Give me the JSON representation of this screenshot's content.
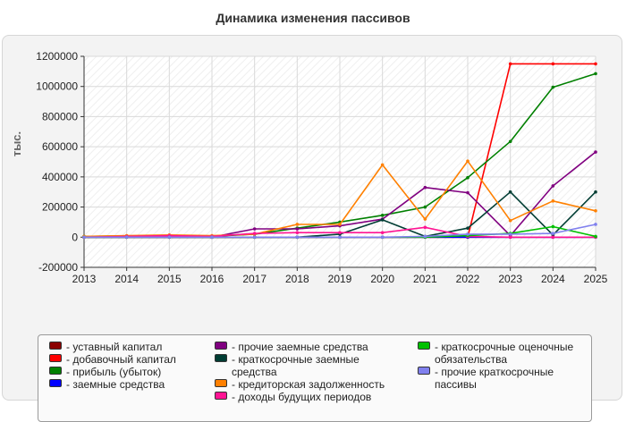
{
  "title": "Динамика изменения пассивов",
  "chart_data": {
    "type": "line",
    "title": "Динамика изменения пассивов",
    "xlabel": "",
    "ylabel": "тыс.",
    "x": [
      "2013",
      "2014",
      "2015",
      "2016",
      "2017",
      "2018",
      "2019",
      "2020",
      "2021",
      "2022",
      "2023",
      "2024",
      "2025"
    ],
    "ylim": [
      -200000,
      1200000
    ],
    "yticks": [
      -200000,
      0,
      200000,
      400000,
      600000,
      800000,
      1000000,
      1200000
    ],
    "grid": true,
    "legend_position": "bottom",
    "series": [
      {
        "name": "- уставный капитал",
        "color": "#8b0000",
        "values": [
          10,
          10,
          10,
          10,
          10,
          10,
          10,
          10,
          10,
          10,
          10,
          10,
          10
        ]
      },
      {
        "name": "- добавочный капитал",
        "color": "#ff0000",
        "values": [
          0,
          0,
          0,
          0,
          0,
          0,
          0,
          0,
          0,
          0,
          1150000,
          1150000,
          1150000
        ]
      },
      {
        "name": "- прибыль (убыток)",
        "color": "#008000",
        "values": [
          5000,
          8000,
          10000,
          5000,
          20000,
          60000,
          100000,
          145000,
          200000,
          395000,
          635000,
          995000,
          1085000
        ]
      },
      {
        "name": "- заемные средства",
        "color": "#0000ff",
        "values": [
          0,
          0,
          0,
          0,
          0,
          0,
          0,
          0,
          0,
          0,
          0,
          0,
          0
        ]
      },
      {
        "name": "- прочие заемные средства",
        "color": "#800080",
        "values": [
          0,
          0,
          0,
          0,
          55000,
          55000,
          75000,
          120000,
          330000,
          295000,
          10000,
          340000,
          565000
        ]
      },
      {
        "name": "- краткосрочные заемные средства",
        "color": "#003d33",
        "values": [
          0,
          0,
          0,
          0,
          0,
          0,
          20000,
          115000,
          5000,
          60000,
          300000,
          15000,
          300000
        ]
      },
      {
        "name": "- кредиторская задолженность",
        "color": "#ff8000",
        "values": [
          5000,
          10000,
          15000,
          10000,
          20000,
          85000,
          85000,
          480000,
          120000,
          505000,
          110000,
          240000,
          175000
        ]
      },
      {
        "name": "- доходы будущих периодов",
        "color": "#ff1493",
        "values": [
          0,
          5000,
          10000,
          5000,
          25000,
          30000,
          30000,
          30000,
          65000,
          5000,
          0,
          0,
          0
        ]
      },
      {
        "name": "- краткосрочные оценочные обязательства",
        "color": "#00c000",
        "values": [
          0,
          0,
          0,
          0,
          0,
          0,
          0,
          0,
          0,
          10000,
          25000,
          70000,
          5000
        ]
      },
      {
        "name": "- прочие краткосрочные пассивы",
        "color": "#8080ee",
        "values": [
          0,
          0,
          0,
          0,
          0,
          0,
          0,
          0,
          5000,
          20000,
          20000,
          25000,
          85000
        ]
      }
    ]
  }
}
